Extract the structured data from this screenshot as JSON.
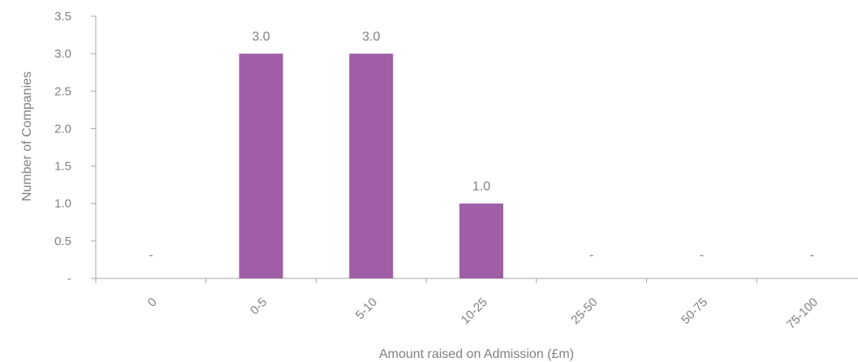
{
  "chart_data": {
    "type": "bar",
    "categories": [
      "0",
      "0-5",
      "5-10",
      "10-25",
      "25-50",
      "50-75",
      "75-100"
    ],
    "values": [
      0,
      3,
      3,
      1,
      0,
      0,
      0
    ],
    "data_labels": [
      "-",
      "3.0",
      "3.0",
      "1.0",
      "-",
      "-",
      "-"
    ],
    "xlabel": "Amount raised on Admission (£m)",
    "ylabel": "Number of Companies",
    "ylim": [
      0,
      3.5
    ],
    "yticks": [
      {
        "value": 0,
        "label": "-"
      },
      {
        "value": 0.5,
        "label": "0.5"
      },
      {
        "value": 1.0,
        "label": "1.0"
      },
      {
        "value": 1.5,
        "label": "1.5"
      },
      {
        "value": 2.0,
        "label": "2.0"
      },
      {
        "value": 2.5,
        "label": "2.5"
      },
      {
        "value": 3.0,
        "label": "3.0"
      },
      {
        "value": 3.5,
        "label": "3.5"
      }
    ],
    "grid": false,
    "colors": {
      "bar": "#A05EA6",
      "axis": "#A6A6A6",
      "text": "#808080"
    }
  }
}
